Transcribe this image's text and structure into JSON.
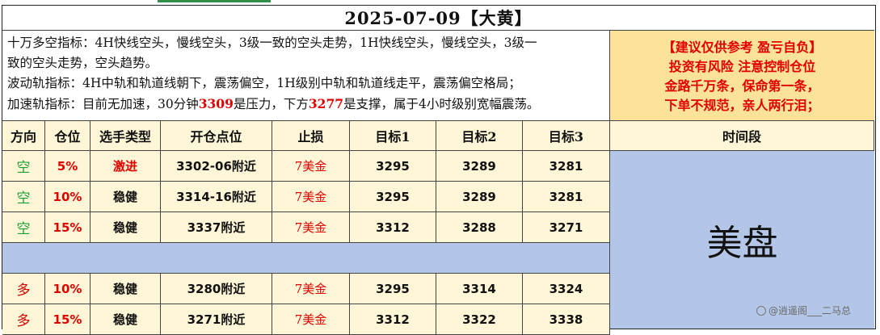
{
  "title": "2025-07-09【大黄】",
  "notes": [
    {
      "parts": [
        {
          "t": "十万多空指标：4H快线空头，慢线空头，3级一致的空头走势，1H快线空头，慢线空头，3级一"
        }
      ]
    },
    {
      "parts": [
        {
          "t": "致的空头走势，空头趋势。"
        }
      ]
    },
    {
      "parts": [
        {
          "t": "波动轨指标：4H中轨和轨道线朝下，震荡偏空，1H级别中轨和轨道线走平，震荡偏空格局；"
        }
      ]
    },
    {
      "parts": [
        {
          "t": "加速轨指标：目前无加速，30分钟"
        },
        {
          "t": "3309",
          "red": true
        },
        {
          "t": "是压力，下方"
        },
        {
          "t": "3277",
          "red": true
        },
        {
          "t": "是支撑，属于4小时级别宽幅震荡。"
        }
      ]
    }
  ],
  "warning": [
    "【建议仅供参考  盈亏自负】",
    "投资有风险 注意控制仓位",
    "金路千万条，保命第一条，",
    "下单不规范，亲人两行泪；"
  ],
  "headers": [
    "方向",
    "仓位",
    "选手类型",
    "开仓点位",
    "止损",
    "目标1",
    "目标2",
    "目标3",
    "时间段"
  ],
  "rows_short": [
    [
      "空",
      "5%",
      "激进",
      "3302-06附近",
      "7美金",
      "3295",
      "3289",
      "3281"
    ],
    [
      "空",
      "10%",
      "稳健",
      "3314-16附近",
      "7美金",
      "3295",
      "3289",
      "3281"
    ],
    [
      "空",
      "15%",
      "稳健",
      "3337附近",
      "7美金",
      "3312",
      "3288",
      "3271"
    ]
  ],
  "rows_long": [
    [
      "多",
      "10%",
      "稳健",
      "3280附近",
      "7美金",
      "3295",
      "3314",
      "3324"
    ],
    [
      "多",
      "15%",
      "稳健",
      "3271附近",
      "7美金",
      "3312",
      "3322",
      "3338"
    ]
  ],
  "session": "美盘",
  "watermark": "@逍遥阁___二马总",
  "colors": {
    "header_bg": "#fef6d6",
    "warning_bg": "#fde39a",
    "session_bg": "#b4c6e7",
    "short": "#1f9d3a",
    "long": "#d00000",
    "alert": "#e00000"
  }
}
